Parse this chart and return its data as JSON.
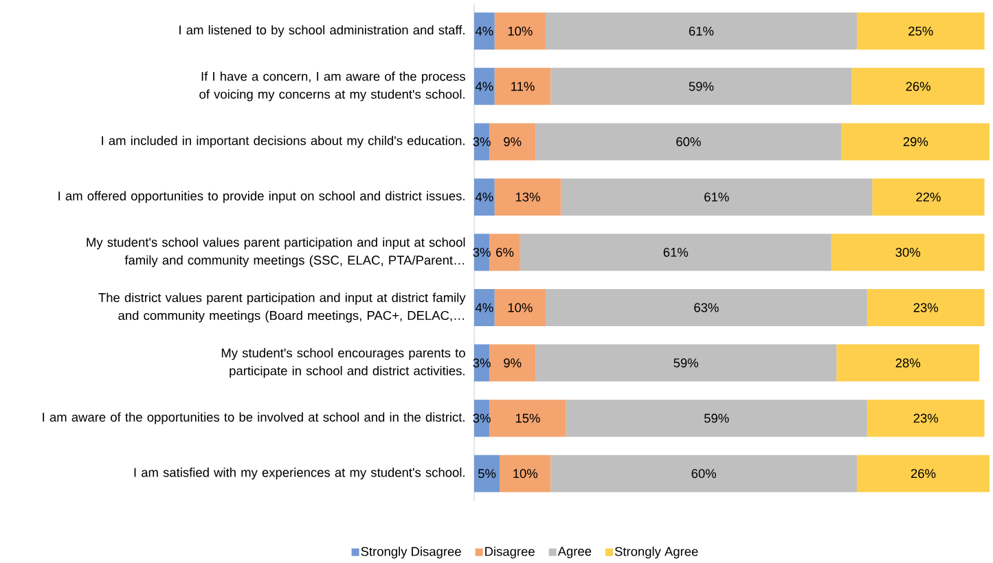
{
  "chart_data": {
    "type": "bar",
    "orientation": "horizontal",
    "stacked": true,
    "legend": "bottom",
    "categories": [
      "I am listened to by school administration and staff.",
      "If I have a concern, I am aware of the process of voicing my concerns at my student's school.",
      "I am included in important decisions about my child's education.",
      "I am offered opportunities to provide input on school and district issues.",
      "My student's school values parent participation and input at school family and community meetings (SSC, ELAC, PTA/Parent…",
      "The district values parent participation and input at district family and community meetings (Board meetings, PAC+, DELAC,…",
      "My student's school encourages parents to participate in school and district activities.",
      "I am aware of the opportunities to be involved at school and in the district.",
      "I am satisfied with my experiences at my student's school."
    ],
    "series": [
      {
        "name": "Strongly Disagree",
        "color": "#7399d4",
        "values": [
          4,
          4,
          3,
          4,
          3,
          4,
          3,
          3,
          5
        ],
        "value_labels": [
          "4%",
          "4%",
          "3%",
          "4%",
          "3%",
          "4%",
          "3%",
          "3%",
          "5%"
        ]
      },
      {
        "name": "Disagree",
        "color": "#f4a46f",
        "values": [
          10,
          11,
          9,
          13,
          6,
          10,
          9,
          15,
          10
        ],
        "value_labels": [
          "10%",
          "11%",
          "9%",
          "13%",
          "6%",
          "10%",
          "9%",
          "15%",
          "10%"
        ]
      },
      {
        "name": "Agree",
        "color": "#bfbfbf",
        "values": [
          61,
          59,
          60,
          61,
          61,
          63,
          59,
          59,
          60
        ],
        "value_labels": [
          "61%",
          "59%",
          "60%",
          "61%",
          "61%",
          "63%",
          "59%",
          "59%",
          "60%"
        ]
      },
      {
        "name": "Strongly Agree",
        "color": "#fdcf4d",
        "values": [
          25,
          26,
          29,
          22,
          30,
          23,
          28,
          23,
          26
        ],
        "value_labels": [
          "25%",
          "26%",
          "29%",
          "22%",
          "30%",
          "23%",
          "28%",
          "23%",
          "26%"
        ]
      }
    ]
  }
}
